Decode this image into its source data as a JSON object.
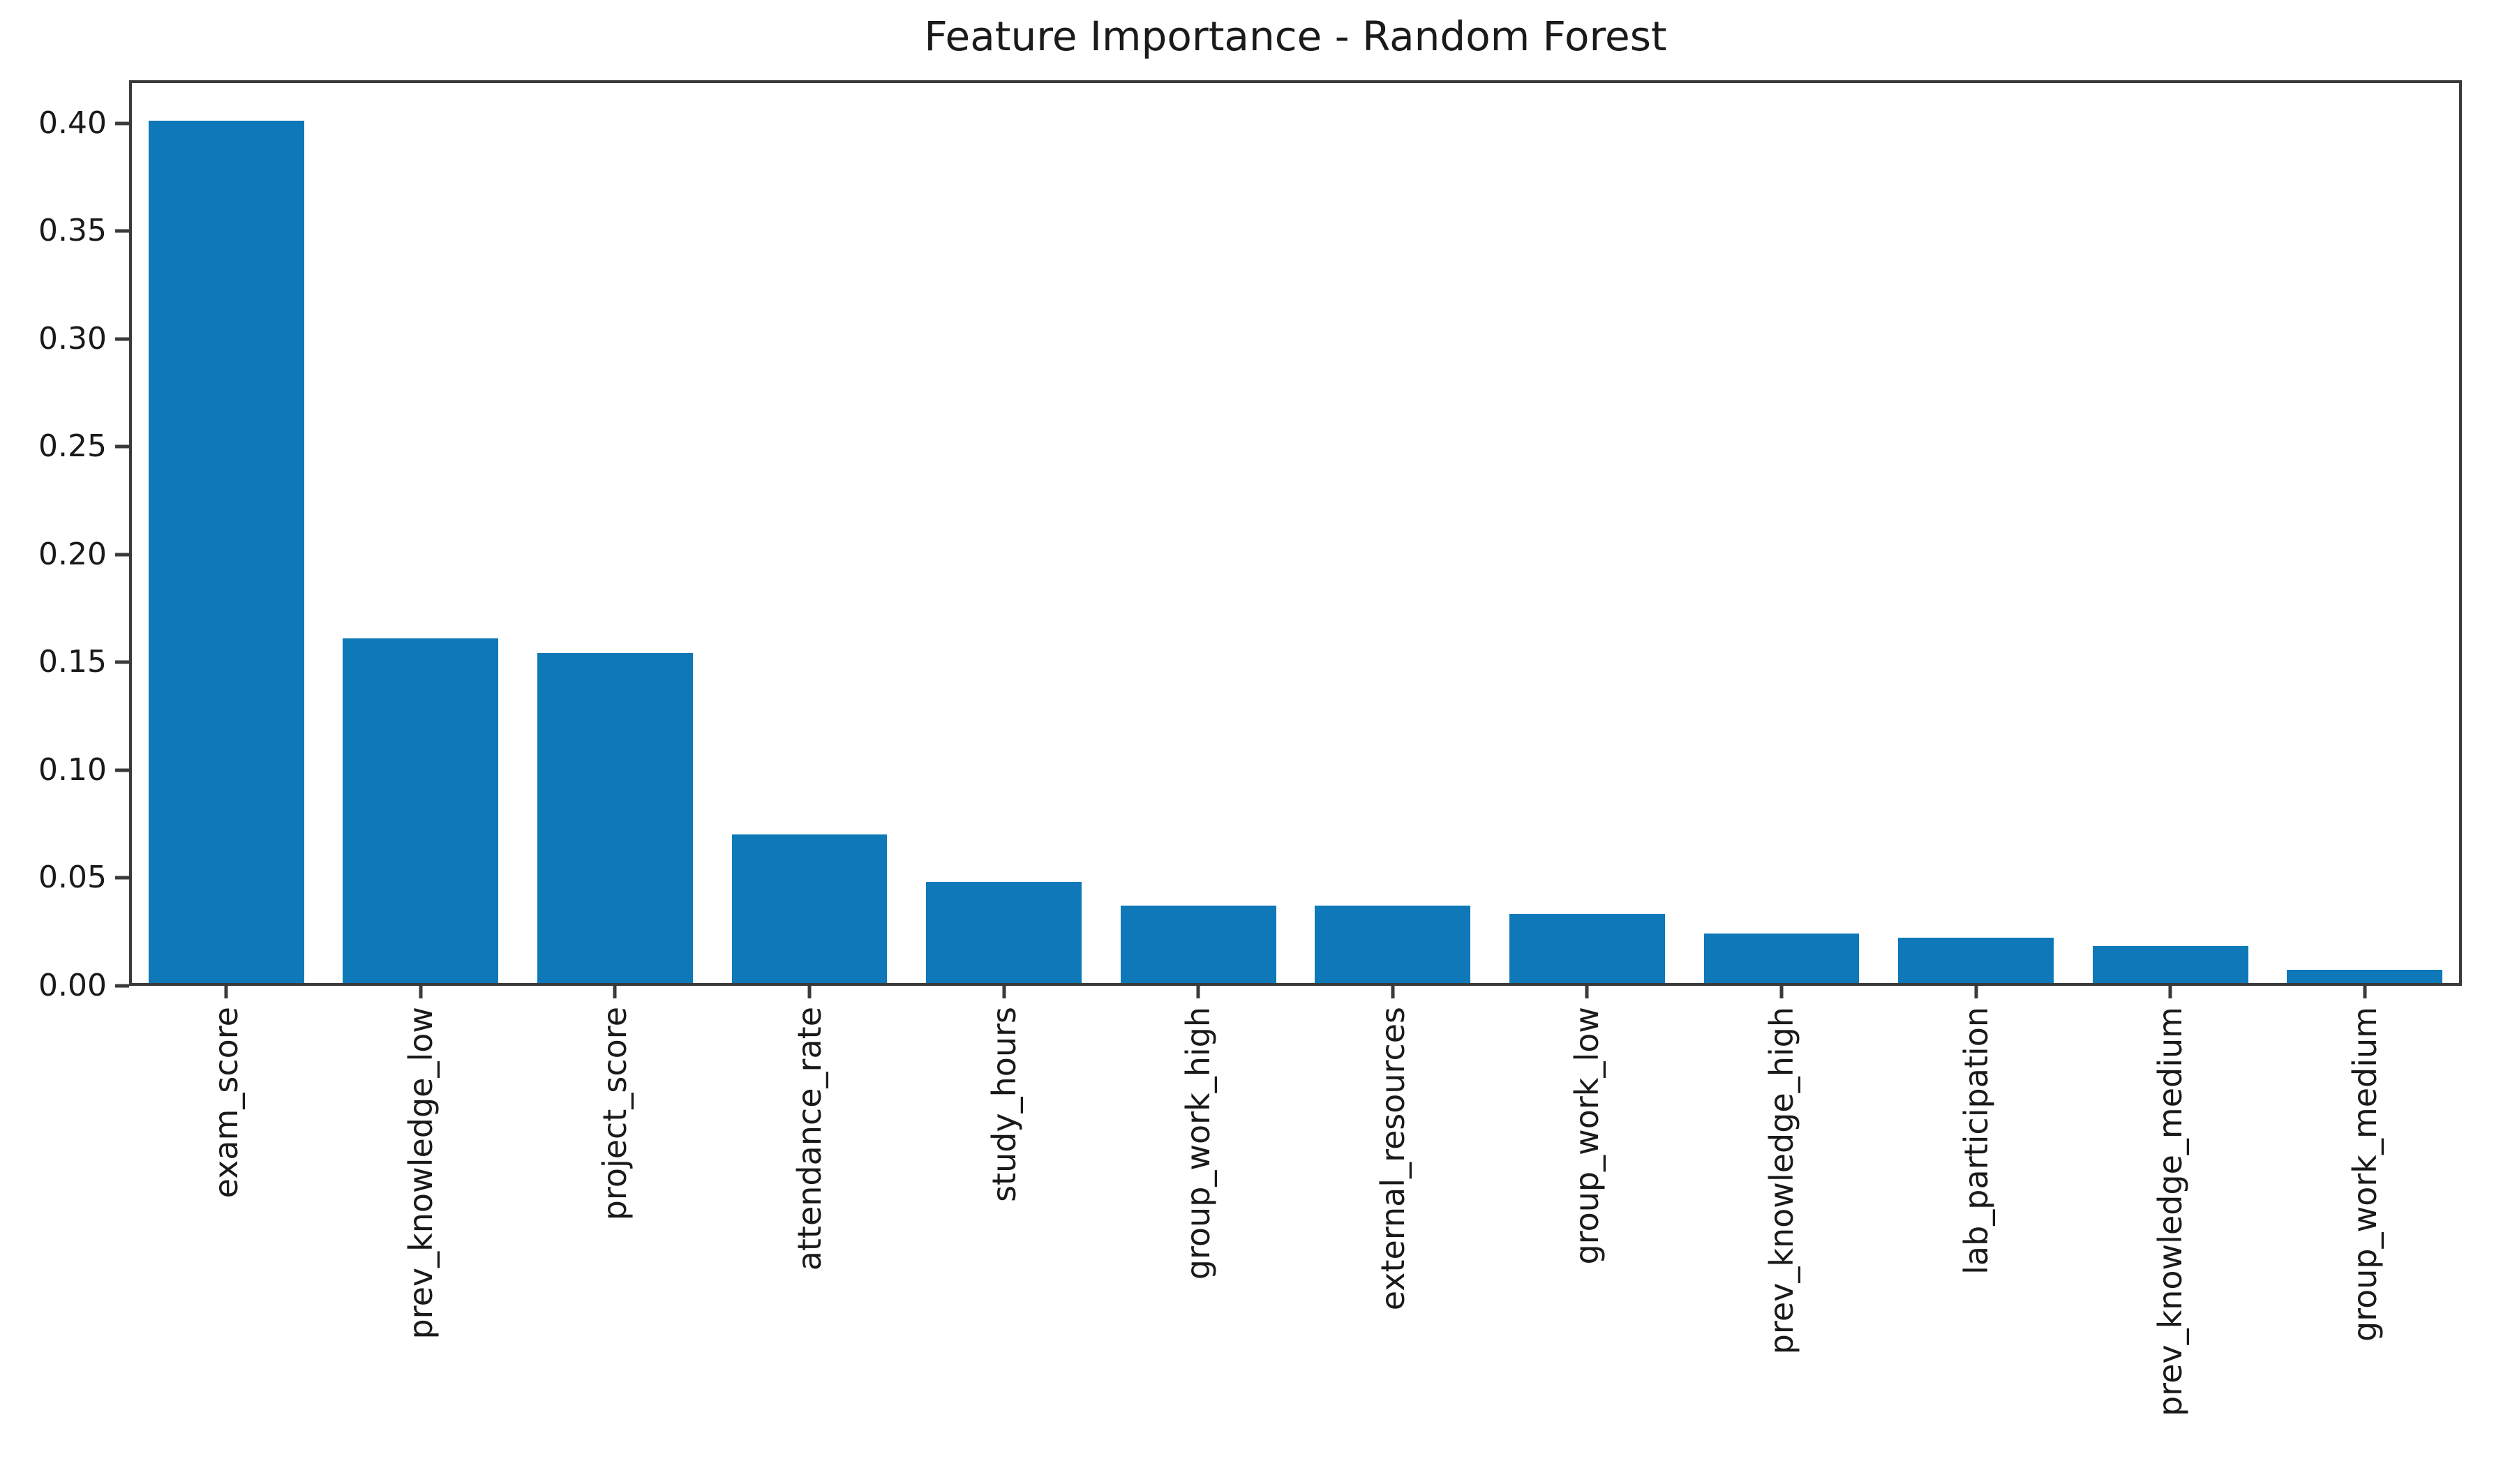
{
  "chart_data": {
    "type": "bar",
    "title": "Feature Importance - Random Forest",
    "xlabel": "",
    "ylabel": "",
    "categories": [
      "exam_score",
      "prev_knowledge_low",
      "project_score",
      "attendance_rate",
      "study_hours",
      "group_work_high",
      "external_resources",
      "group_work_low",
      "prev_knowledge_high",
      "lab_participation",
      "prev_knowledge_medium",
      "group_work_medium"
    ],
    "values": [
      0.4,
      0.16,
      0.153,
      0.069,
      0.047,
      0.036,
      0.036,
      0.032,
      0.023,
      0.021,
      0.017,
      0.006
    ],
    "ylim": [
      0,
      0.42
    ],
    "yticks": [
      "0.00",
      "0.05",
      "0.10",
      "0.15",
      "0.20",
      "0.25",
      "0.30",
      "0.35",
      "0.40"
    ],
    "grid": false,
    "legend": "none",
    "x_tick_rotation_deg": 90,
    "colors": {
      "bar": "#0e78b8",
      "axis": "#3a3a3a",
      "text": "#1a1a1a",
      "background": "#ffffff"
    }
  }
}
